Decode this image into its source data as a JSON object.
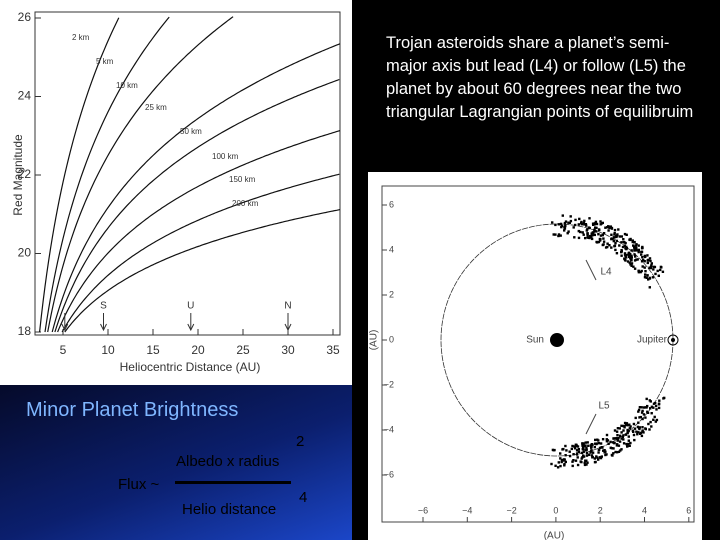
{
  "left_figure": {
    "y_label": "Red Magnitude",
    "x_label": "Heliocentric Distance (AU)",
    "yticks": [
      "26",
      "24",
      "22",
      "20",
      "18"
    ],
    "xticks": [
      "5",
      "10",
      "15",
      "20",
      "25",
      "30",
      "35"
    ],
    "curve_labels": [
      "2 km",
      "5 km",
      "10 km",
      "25 km",
      "50 km",
      "100 km",
      "150 km",
      "200 km"
    ],
    "arrow_labels": [
      "S",
      "U",
      "N"
    ]
  },
  "caption": "Trojan asteroids share a planet’s semi-major axis but lead (L4) or follow (L5) the planet by about 60 degrees near the two triangular Lagrangian points of equilibruim",
  "right_figure": {
    "yticks": [
      "6",
      "4",
      "2",
      "0",
      "−2",
      "−4",
      "−6"
    ],
    "xticks": [
      "−6",
      "−4",
      "−2",
      "0",
      "2",
      "4",
      "6"
    ],
    "x_label": "(AU)",
    "y_label": "(AU)",
    "sun": "Sun",
    "planet": "Jupiter",
    "l4": "L4",
    "l5": "L5"
  },
  "formula": {
    "title": "Minor Planet Brightness",
    "lhs": "Flux ~",
    "numerator": "Albedo x radius",
    "numerator_exp": "2",
    "denominator": "Helio distance",
    "denominator_exp": "4"
  }
}
